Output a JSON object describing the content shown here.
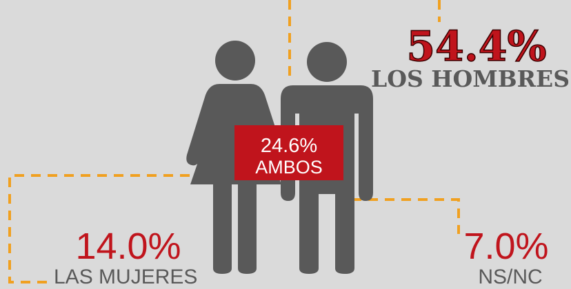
{
  "items": [
    {
      "value": "54.4%",
      "label": "LOS HOMBRES"
    },
    {
      "value": "24.6%",
      "label": "AMBOS"
    },
    {
      "value": "14.0%",
      "label": "LAS MUJERES"
    },
    {
      "value": "7.0%",
      "label": "NS/NC"
    }
  ]
}
